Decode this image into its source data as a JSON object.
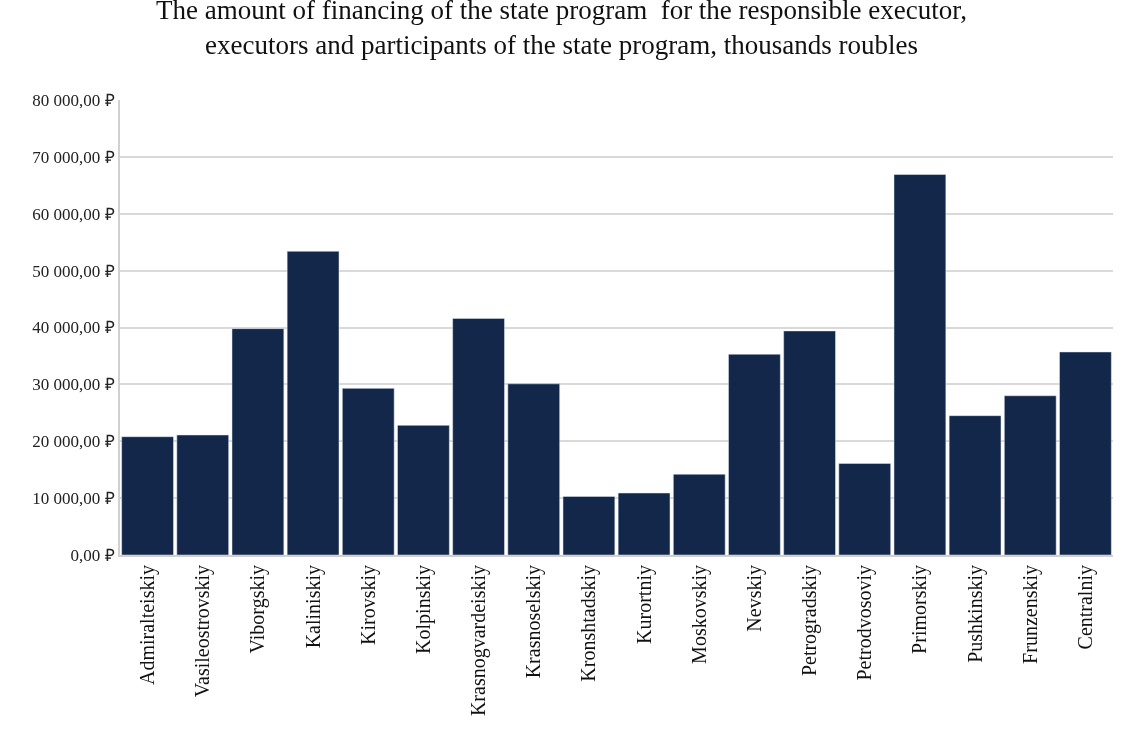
{
  "chart_data": {
    "type": "bar",
    "title": "The amount of financing of the state program  for the responsible executor,\nexecutors and participants of the state program, thousands roubles",
    "categories": [
      "Admiralteiskiy",
      "Vasileostrovskiy",
      "Viborgskiy",
      "Kaliniskiy",
      "Kirovskiy",
      "Kolpinskiy",
      "Krasnogvardeiskiy",
      "Krasnoselskiy",
      "Kronshtadskiy",
      "Kurortniy",
      "Moskovskiy",
      "Nevskiy",
      "Petrogradskiy",
      "Petrodvosoviy",
      "Primorskiy",
      "Pushkinskiy",
      "Frunzenskiy",
      "Centralniy"
    ],
    "values": [
      20800,
      21100,
      39800,
      53400,
      29300,
      22800,
      41600,
      30100,
      10300,
      10900,
      14200,
      35300,
      39400,
      16100,
      66900,
      24500,
      28000,
      35700
    ],
    "color": "#13274a",
    "ylim": [
      0,
      80000
    ],
    "yticks": [
      {
        "value": 0,
        "label": "0,00 ₽"
      },
      {
        "value": 10000,
        "label": "10 000,00 ₽"
      },
      {
        "value": 20000,
        "label": "20 000,00 ₽"
      },
      {
        "value": 30000,
        "label": "30 000,00 ₽"
      },
      {
        "value": 40000,
        "label": "40 000,00 ₽"
      },
      {
        "value": 50000,
        "label": "50 000,00 ₽"
      },
      {
        "value": 60000,
        "label": "60 000,00 ₽"
      },
      {
        "value": 70000,
        "label": "70 000,00 ₽"
      },
      {
        "value": 80000,
        "label": "80 000,00 ₽"
      }
    ],
    "grid": "y",
    "legend": false
  }
}
